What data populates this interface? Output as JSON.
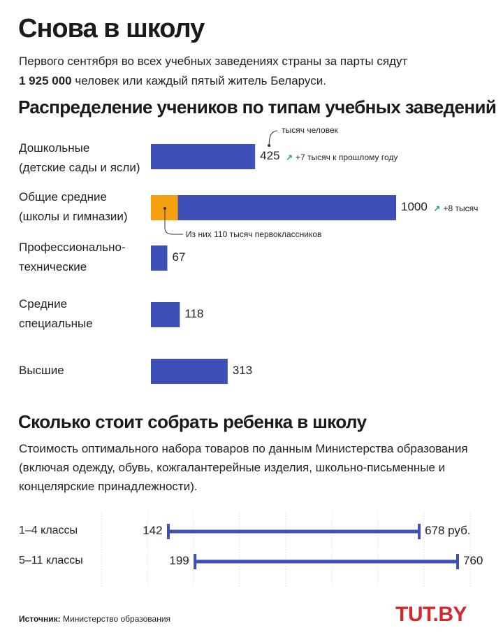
{
  "title": "Снова в школу",
  "intro": {
    "line1": "Первого сентября во всех учебных заведениях страны за парты сядут",
    "bold_number": "1 925 000",
    "line2_rest": " человек или каждый пятый житель Беларуси."
  },
  "section1_title": "Распределение учеников по типам учебных заведений",
  "section2_title": "Сколько стоит собрать ребенка в школу",
  "section2_description": "Стоимость оптимального набора товаров по данным Министерства образования (включая одежду, обувь, кожгалантерейные изделия, школьно-письменные и концелярские принадлежности).",
  "colors": {
    "bar": "#3e4fb8",
    "highlight": "#f5a011",
    "up_arrow": "#1fa37a",
    "logo": "#d7262e"
  },
  "chart_data": [
    {
      "type": "bar",
      "orientation": "horizontal",
      "title": "Распределение учеников по типам учебных заведений",
      "unit_note": "тысяч человек",
      "categories": [
        {
          "line1": "Дошкольные",
          "line2": "(детские сады и ясли)"
        },
        {
          "line1": "Общие средние",
          "line2": "(школы и гимназии)"
        },
        {
          "line1": "Профессионально-",
          "line2": "технические"
        },
        {
          "line1": "Средние",
          "line2": "специальные"
        },
        {
          "line1": "Высшие",
          "line2": ""
        }
      ],
      "values": [
        425,
        1000,
        67,
        118,
        313
      ],
      "value_labels": [
        "425",
        "1000",
        "67",
        "118",
        "313"
      ],
      "highlight": {
        "category_index": 1,
        "value": 110,
        "note": "Из них 110 тысяч первоклассников"
      },
      "deltas": [
        {
          "category_index": 0,
          "text": "+7 тысяч к прошлому году"
        },
        {
          "category_index": 1,
          "text": "+8 тысяч"
        }
      ]
    },
    {
      "type": "range",
      "title": "Сколько стоит собрать ребенка в школу",
      "rows": [
        {
          "label": "1–4 классы",
          "min": 142,
          "max": 678,
          "min_label": "142",
          "max_label": "678 руб."
        },
        {
          "label": "5–11 классы",
          "min": 199,
          "max": 760,
          "min_label": "199",
          "max_label": "760"
        }
      ]
    }
  ],
  "source": {
    "label": "Источник:",
    "text": " Министерство образования"
  },
  "logo": "TUT.BY"
}
